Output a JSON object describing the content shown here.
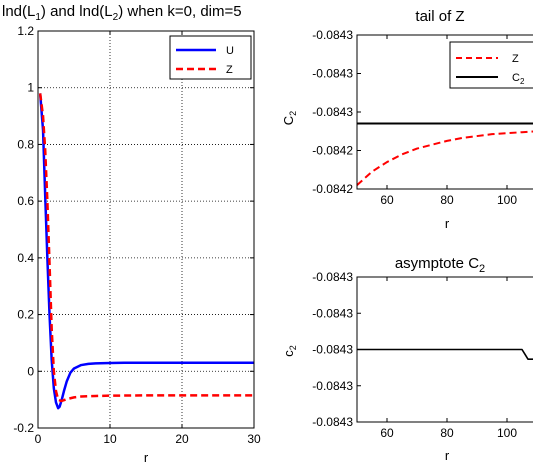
{
  "chart_data": [
    {
      "type": "line",
      "title": "lnd(L₁) and lnd(L₂) when k=0, dim=5",
      "xlabel": "r",
      "ylabel": "",
      "xlim": [
        0,
        30
      ],
      "ylim": [
        -0.2,
        1.2
      ],
      "xticks": [
        "0",
        "10",
        "20",
        "30"
      ],
      "yticks": [
        "-0.2",
        "0",
        "0.2",
        "0.4",
        "0.6",
        "0.8",
        "1",
        "1.2"
      ],
      "grid": true,
      "legend_position": "top-right",
      "series": [
        {
          "name": "U",
          "color": "#0000ff",
          "style": "solid",
          "x": [
            0.3,
            0.7,
            1.0,
            1.3,
            1.6,
            1.9,
            2.2,
            2.5,
            2.8,
            3.0,
            3.3,
            3.6,
            4,
            4.5,
            5,
            6,
            7,
            8,
            10,
            12,
            15,
            20,
            25,
            30
          ],
          "y": [
            0.98,
            0.85,
            0.62,
            0.4,
            0.2,
            0.04,
            -0.06,
            -0.11,
            -0.13,
            -0.125,
            -0.1,
            -0.07,
            -0.035,
            -0.005,
            0.01,
            0.022,
            0.026,
            0.028,
            0.029,
            0.03,
            0.03,
            0.03,
            0.03,
            0.03
          ]
        },
        {
          "name": "Z",
          "color": "#ff0000",
          "style": "dashed",
          "x": [
            0.3,
            0.7,
            1.0,
            1.3,
            1.6,
            1.9,
            2.2,
            2.5,
            2.8,
            3.2,
            3.6,
            4,
            5,
            6,
            8,
            10,
            15,
            20,
            25,
            30
          ],
          "y": [
            0.98,
            0.9,
            0.78,
            0.6,
            0.38,
            0.15,
            0.0,
            -0.07,
            -0.1,
            -0.105,
            -0.102,
            -0.098,
            -0.092,
            -0.089,
            -0.087,
            -0.086,
            -0.085,
            -0.085,
            -0.085,
            -0.085
          ]
        }
      ]
    },
    {
      "type": "line",
      "title": "tail of Z",
      "xlabel": "r",
      "ylabel": "C₂",
      "xlim": [
        50,
        110
      ],
      "ylim": [
        -0.08429,
        -0.08421
      ],
      "xticks": [
        "60",
        "80",
        "100"
      ],
      "yticks": [
        "-0.0842",
        "-0.0842",
        "-0.0843",
        "-0.0843",
        "-0.0843"
      ],
      "grid": false,
      "legend_position": "top-right",
      "series": [
        {
          "name": "Z",
          "color": "#ff0000",
          "style": "dashed",
          "x": [
            50,
            55,
            60,
            65,
            70,
            75,
            80,
            85,
            90,
            95,
            100,
            105,
            110
          ],
          "y": [
            -0.084288,
            -0.084281,
            -0.084276,
            -0.084272,
            -0.084269,
            -0.084267,
            -0.084265,
            -0.0842635,
            -0.0842625,
            -0.0842615,
            -0.084261,
            -0.0842605,
            -0.08426
          ]
        },
        {
          "name": "C₂",
          "color": "#000000",
          "style": "solid",
          "x": [
            50,
            110
          ],
          "y": [
            -0.084256,
            -0.084256
          ]
        }
      ]
    },
    {
      "type": "line",
      "title": "asymptote C₂",
      "xlabel": "r",
      "ylabel": "c₂",
      "xlim": [
        50,
        110
      ],
      "ylim": [
        -0.08433,
        -0.08427
      ],
      "xticks": [
        "60",
        "80",
        "100"
      ],
      "yticks": [
        "-0.0843",
        "-0.0843",
        "-0.0843",
        "-0.0843",
        "-0.0843"
      ],
      "grid": false,
      "series": [
        {
          "name": "",
          "color": "#000000",
          "style": "solid",
          "x": [
            50,
            60,
            70,
            80,
            90,
            100,
            105,
            106,
            107,
            108,
            110
          ],
          "y": [
            -0.0843,
            -0.0843,
            -0.0843,
            -0.0843,
            -0.0843,
            -0.0843,
            -0.0843,
            -0.084302,
            -0.084304,
            -0.084304,
            -0.084304
          ]
        }
      ]
    }
  ]
}
